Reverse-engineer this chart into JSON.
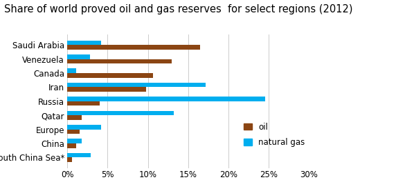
{
  "title": "Share of world proved oil and gas reserves  for select regions (2012)",
  "categories": [
    "Saudi Arabia",
    "Venezuela",
    "Canada",
    "Iran",
    "Russia",
    "Qatar",
    "Europe",
    "China",
    "South China Sea*"
  ],
  "oil": [
    16.5,
    13.0,
    10.6,
    9.8,
    4.0,
    1.8,
    1.5,
    1.1,
    0.6
  ],
  "natural_gas": [
    4.2,
    2.8,
    1.1,
    17.2,
    24.6,
    13.2,
    4.2,
    1.8,
    2.9
  ],
  "oil_color": "#8B4513",
  "gas_color": "#00AEEF",
  "background_color": "#FFFFFF",
  "xlim": [
    0,
    30
  ],
  "xticks": [
    0,
    5,
    10,
    15,
    20,
    25,
    30
  ],
  "xtick_labels": [
    "0%",
    "5%",
    "10%",
    "15%",
    "20%",
    "25%",
    "30%"
  ],
  "bar_height": 0.32,
  "title_fontsize": 10.5,
  "tick_fontsize": 8.5,
  "legend_fontsize": 8.5
}
